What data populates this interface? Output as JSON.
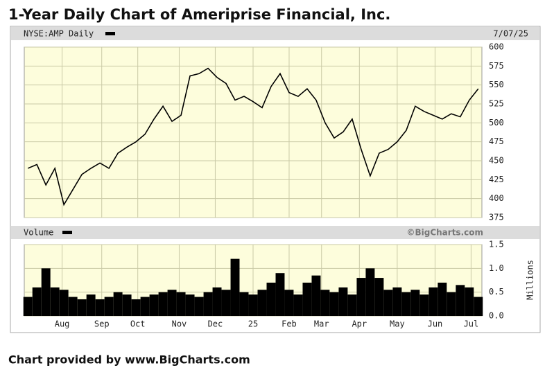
{
  "title": "1-Year Daily Chart of Ameriprise Financial, Inc.",
  "footer": "Chart provided by www.BigCharts.com",
  "chart_data": [
    {
      "type": "line",
      "subtitle": "NYSE:AMP Daily",
      "date": "7/07/25",
      "color": "#000000",
      "x": [
        0,
        5,
        10,
        15,
        20,
        25,
        30,
        35,
        40,
        45,
        50,
        55,
        60,
        65,
        70,
        75,
        80,
        85,
        90,
        95,
        100,
        105,
        110,
        115,
        120,
        125,
        130,
        135,
        140,
        145,
        150,
        155,
        160,
        165,
        170,
        175,
        180,
        185,
        190,
        195,
        200,
        205,
        210,
        215,
        220,
        225,
        230,
        235,
        240,
        245,
        250
      ],
      "values": [
        440,
        445,
        418,
        440,
        392,
        412,
        432,
        440,
        447,
        440,
        460,
        468,
        475,
        485,
        505,
        522,
        502,
        510,
        562,
        565,
        572,
        560,
        552,
        530,
        535,
        528,
        520,
        548,
        565,
        540,
        535,
        545,
        530,
        500,
        480,
        488,
        505,
        465,
        430,
        460,
        465,
        475,
        490,
        522,
        515,
        510,
        505,
        512,
        508,
        530,
        545
      ],
      "xlim": [
        -2,
        252
      ],
      "ylim": [
        375,
        600
      ],
      "yticks": [
        375,
        400,
        425,
        450,
        475,
        500,
        525,
        550,
        575,
        600
      ],
      "grid": true
    },
    {
      "type": "bar",
      "subtitle": "Volume",
      "credit": "©BigCharts.com",
      "y_label": "Millions",
      "color": "#000000",
      "x": [
        0,
        5,
        10,
        15,
        20,
        25,
        30,
        35,
        40,
        45,
        50,
        55,
        60,
        65,
        70,
        75,
        80,
        85,
        90,
        95,
        100,
        105,
        110,
        115,
        120,
        125,
        130,
        135,
        140,
        145,
        150,
        155,
        160,
        165,
        170,
        175,
        180,
        185,
        190,
        195,
        200,
        205,
        210,
        215,
        220,
        225,
        230,
        235,
        240,
        245,
        250
      ],
      "values": [
        0.4,
        0.6,
        1.0,
        0.6,
        0.55,
        0.4,
        0.35,
        0.45,
        0.35,
        0.4,
        0.5,
        0.45,
        0.35,
        0.4,
        0.45,
        0.5,
        0.55,
        0.5,
        0.45,
        0.4,
        0.5,
        0.6,
        0.55,
        1.2,
        0.5,
        0.45,
        0.55,
        0.7,
        0.9,
        0.55,
        0.45,
        0.7,
        0.85,
        0.55,
        0.5,
        0.6,
        0.45,
        0.8,
        1.0,
        0.8,
        0.55,
        0.6,
        0.5,
        0.55,
        0.45,
        0.6,
        0.7,
        0.5,
        0.65,
        0.6,
        0.4
      ],
      "xlim": [
        -2,
        252
      ],
      "ylim": [
        0,
        1.5
      ],
      "yticks": [
        {
          "value": 0,
          "label": "0.0"
        },
        0.5,
        {
          "value": 1,
          "label": "1.0"
        },
        1.5
      ],
      "xticks": [
        {
          "value": 19,
          "label": "Aug"
        },
        {
          "value": 41,
          "label": "Sep"
        },
        {
          "value": 61,
          "label": "Oct"
        },
        {
          "value": 84,
          "label": "Nov"
        },
        {
          "value": 104,
          "label": "Dec"
        },
        {
          "value": 125,
          "label": "25"
        },
        {
          "value": 145,
          "label": "Feb"
        },
        {
          "value": 163,
          "label": "Mar"
        },
        {
          "value": 184,
          "label": "Apr"
        },
        {
          "value": 205,
          "label": "May"
        },
        {
          "value": 226,
          "label": "Jun"
        },
        {
          "value": 246,
          "label": "Jul"
        }
      ],
      "grid": true
    }
  ]
}
